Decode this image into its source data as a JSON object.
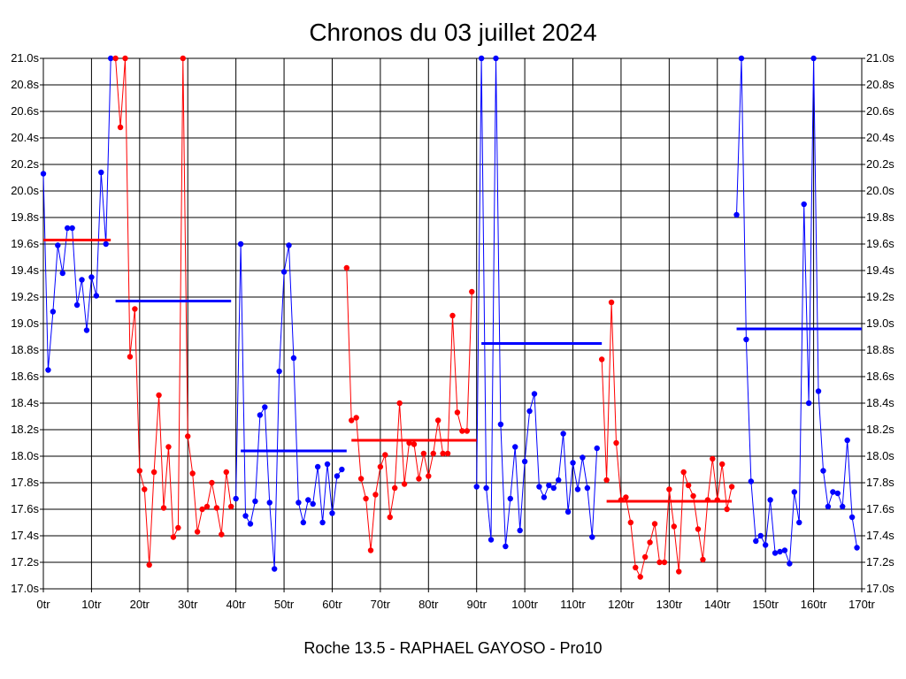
{
  "chart_data": {
    "type": "line",
    "title": "Chronos du 03 juillet 2024",
    "subtitle": "Roche 13.5 - RAPHAEL GAYOSO - Pro10",
    "xlim": [
      0,
      170
    ],
    "ylim": [
      17.0,
      21.0
    ],
    "grid": true,
    "x_ticks": [
      {
        "value": 0,
        "label": "0tr"
      },
      {
        "value": 10,
        "label": "10tr"
      },
      {
        "value": 20,
        "label": "20tr"
      },
      {
        "value": 30,
        "label": "30tr"
      },
      {
        "value": 40,
        "label": "40tr"
      },
      {
        "value": 50,
        "label": "50tr"
      },
      {
        "value": 60,
        "label": "60tr"
      },
      {
        "value": 70,
        "label": "70tr"
      },
      {
        "value": 80,
        "label": "80tr"
      },
      {
        "value": 90,
        "label": "90tr"
      },
      {
        "value": 100,
        "label": "100tr"
      },
      {
        "value": 110,
        "label": "110tr"
      },
      {
        "value": 120,
        "label": "120tr"
      },
      {
        "value": 130,
        "label": "130tr"
      },
      {
        "value": 140,
        "label": "140tr"
      },
      {
        "value": 150,
        "label": "150tr"
      },
      {
        "value": 160,
        "label": "160tr"
      },
      {
        "value": 170,
        "label": "170tr"
      }
    ],
    "y_ticks": [
      {
        "value": 17.0,
        "label": "17.0s"
      },
      {
        "value": 17.2,
        "label": "17.2s"
      },
      {
        "value": 17.4,
        "label": "17.4s"
      },
      {
        "value": 17.6,
        "label": "17.6s"
      },
      {
        "value": 17.8,
        "label": "17.8s"
      },
      {
        "value": 18.0,
        "label": "18.0s"
      },
      {
        "value": 18.2,
        "label": "18.2s"
      },
      {
        "value": 18.4,
        "label": "18.4s"
      },
      {
        "value": 18.6,
        "label": "18.6s"
      },
      {
        "value": 18.8,
        "label": "18.8s"
      },
      {
        "value": 19.0,
        "label": "19.0s"
      },
      {
        "value": 19.2,
        "label": "19.2s"
      },
      {
        "value": 19.4,
        "label": "19.4s"
      },
      {
        "value": 19.6,
        "label": "19.6s"
      },
      {
        "value": 19.8,
        "label": "19.8s"
      },
      {
        "value": 20.0,
        "label": "20.0s"
      },
      {
        "value": 20.2,
        "label": "20.2s"
      },
      {
        "value": 20.4,
        "label": "20.4s"
      },
      {
        "value": 20.6,
        "label": "20.6s"
      },
      {
        "value": 20.8,
        "label": "20.8s"
      },
      {
        "value": 21.0,
        "label": "21.0s"
      }
    ],
    "series": [
      {
        "name": "segment-1",
        "color": "#0000ff",
        "start": 0,
        "values": [
          20.13,
          18.65,
          19.09,
          19.59,
          19.38,
          19.72,
          19.72,
          19.14,
          19.33,
          18.95,
          19.35,
          19.21,
          20.14,
          19.6,
          21.0
        ]
      },
      {
        "name": "segment-2",
        "color": "#ff0000",
        "start": 15,
        "values": [
          21.0,
          20.48,
          21.0,
          18.75,
          19.11,
          17.89,
          17.75,
          17.18,
          17.88,
          18.46,
          17.61,
          18.07,
          17.39,
          17.46,
          21.0,
          18.15,
          17.87,
          17.43,
          17.6,
          17.62,
          17.8,
          17.61,
          17.41,
          17.88,
          17.62
        ]
      },
      {
        "name": "segment-3",
        "color": "#0000ff",
        "start": 40,
        "values": [
          17.68,
          19.6,
          17.55,
          17.49,
          17.66,
          18.31,
          18.37,
          17.65,
          17.15,
          18.64,
          19.39,
          19.59,
          18.74,
          17.65,
          17.5,
          17.67,
          17.64,
          17.92,
          17.5,
          17.94,
          17.57,
          17.85,
          17.9
        ]
      },
      {
        "name": "segment-4",
        "color": "#ff0000",
        "start": 63,
        "values": [
          19.42,
          18.27,
          18.29,
          17.83,
          17.68,
          17.29,
          17.71,
          17.92,
          18.01,
          17.54,
          17.76,
          18.4,
          17.79,
          18.1,
          18.09,
          17.83,
          18.02,
          17.85,
          18.02,
          18.27,
          18.02,
          18.02,
          19.06,
          18.33,
          18.19,
          18.19,
          19.24
        ]
      },
      {
        "name": "segment-5",
        "color": "#0000ff",
        "start": 90,
        "values": [
          17.77,
          21.0,
          17.76,
          17.37,
          21.0,
          18.24,
          17.32,
          17.68,
          18.07,
          17.44,
          17.96,
          18.34,
          18.47,
          17.77,
          17.69,
          17.78,
          17.76,
          17.82,
          18.17,
          17.58,
          17.95,
          17.75,
          17.99,
          17.76,
          17.39,
          18.06
        ]
      },
      {
        "name": "segment-6",
        "color": "#ff0000",
        "start": 116,
        "values": [
          18.73,
          17.82,
          19.16,
          18.1,
          17.67,
          17.69,
          17.5,
          17.16,
          17.09,
          17.24,
          17.35,
          17.49,
          17.2,
          17.2,
          17.75,
          17.47,
          17.13,
          17.88,
          17.78,
          17.7,
          17.45,
          17.22,
          17.67,
          17.98,
          17.67,
          17.94,
          17.6,
          17.77
        ]
      },
      {
        "name": "segment-7",
        "color": "#0000ff",
        "start": 144,
        "values": [
          19.82,
          21.0,
          18.88,
          17.81,
          17.36,
          17.4,
          17.33,
          17.67,
          17.27,
          17.28,
          17.29,
          17.19,
          17.73,
          17.5,
          19.9,
          18.4,
          21.0,
          18.49,
          17.89,
          17.62,
          17.73,
          17.72,
          17.62,
          18.12,
          17.54,
          17.31
        ]
      }
    ],
    "averages": [
      {
        "x_start": 0,
        "x_end": 14,
        "value": 19.63,
        "color": "#ff0000"
      },
      {
        "x_start": 15,
        "x_end": 39,
        "value": 19.17,
        "color": "#0000ff"
      },
      {
        "x_start": 41,
        "x_end": 63,
        "value": 18.04,
        "color": "#0000ff"
      },
      {
        "x_start": 64,
        "x_end": 90,
        "value": 18.12,
        "color": "#ff0000"
      },
      {
        "x_start": 91,
        "x_end": 116,
        "value": 18.85,
        "color": "#0000ff"
      },
      {
        "x_start": 117,
        "x_end": 143,
        "value": 17.66,
        "color": "#ff0000"
      },
      {
        "x_start": 144,
        "x_end": 170,
        "value": 18.96,
        "color": "#0000ff"
      }
    ]
  }
}
